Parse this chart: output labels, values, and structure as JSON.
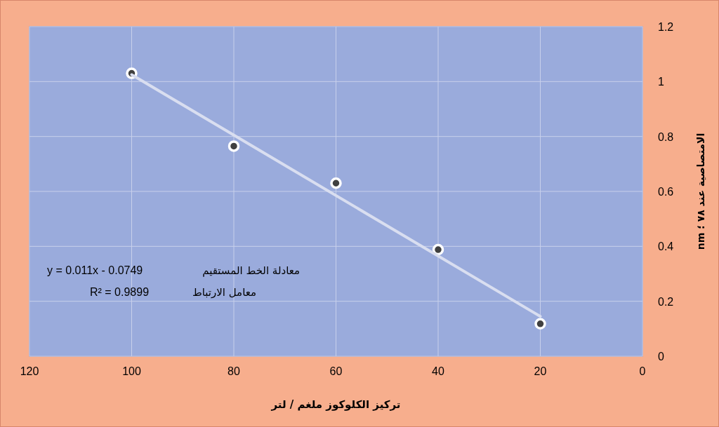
{
  "chart_data": {
    "type": "scatter",
    "xlabel": "تركيز الكلوكوز ملغم / لتر",
    "ylabel": "الامتصاصية عند ٧٨ ؛ nm",
    "annotations": [
      "معادلة الخط المستقيم",
      "y = 0.011x - 0.0749",
      "معامل الارتباط",
      "R² = 0.9899"
    ],
    "series": [
      {
        "color": "#404040",
        "marker": "circle",
        "x": [
          100,
          80,
          60,
          40,
          20
        ],
        "values": [
          1.03,
          0.765,
          0.63,
          0.388,
          0.118
        ]
      },
      {
        "type": "line",
        "color": "#d9def0",
        "marker": "none",
        "x": [
          20,
          100
        ],
        "values": [
          0.145,
          1.025
        ]
      }
    ],
    "xlim": [
      120,
      0
    ],
    "xticks": [
      120,
      100,
      80,
      60,
      40,
      20,
      0
    ],
    "ylim": [
      0,
      1.2
    ],
    "yticks": [
      0,
      0.2,
      0.4,
      0.6,
      0.8,
      1,
      1.2
    ],
    "grid": true
  }
}
